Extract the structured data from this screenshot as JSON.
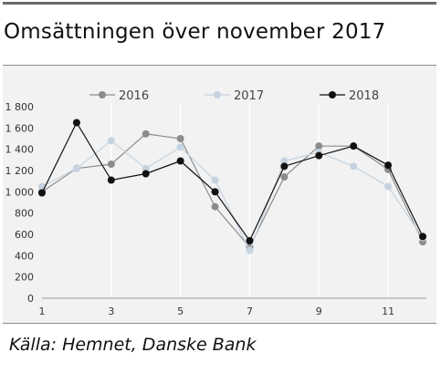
{
  "header": {
    "title": "Omsättningen över november 2017"
  },
  "footer": {
    "source": "Källa: Hemnet, Danske Bank"
  },
  "chart_data": {
    "type": "line",
    "title": "Omsättningen över november 2017",
    "xlabel": "",
    "ylabel": "",
    "x": [
      1,
      2,
      3,
      4,
      5,
      6,
      7,
      8,
      9,
      10,
      11,
      12
    ],
    "x_tick_labels": [
      "1",
      "3",
      "5",
      "7",
      "9",
      "11"
    ],
    "y_tick_labels": [
      "0",
      "200",
      "400",
      "600",
      "800",
      "1 000",
      "1 200",
      "1 400",
      "1 600",
      "1 800"
    ],
    "ylim": [
      0,
      1800
    ],
    "grid": false,
    "legend_position": "top",
    "series": [
      {
        "name": "2016",
        "color": "#8c8c8c",
        "values": [
          1000,
          1220,
          1260,
          1545,
          1500,
          860,
          480,
          1140,
          1430,
          1430,
          1210,
          530
        ]
      },
      {
        "name": "2017",
        "color": "#c5d3e0",
        "values": [
          1050,
          1220,
          1480,
          1220,
          1420,
          1110,
          450,
          1290,
          1370,
          1240,
          1050,
          570
        ]
      },
      {
        "name": "2018",
        "color": "#111111",
        "values": [
          990,
          1650,
          1110,
          1170,
          1290,
          1000,
          540,
          1240,
          1340,
          1430,
          1250,
          580
        ]
      }
    ]
  }
}
